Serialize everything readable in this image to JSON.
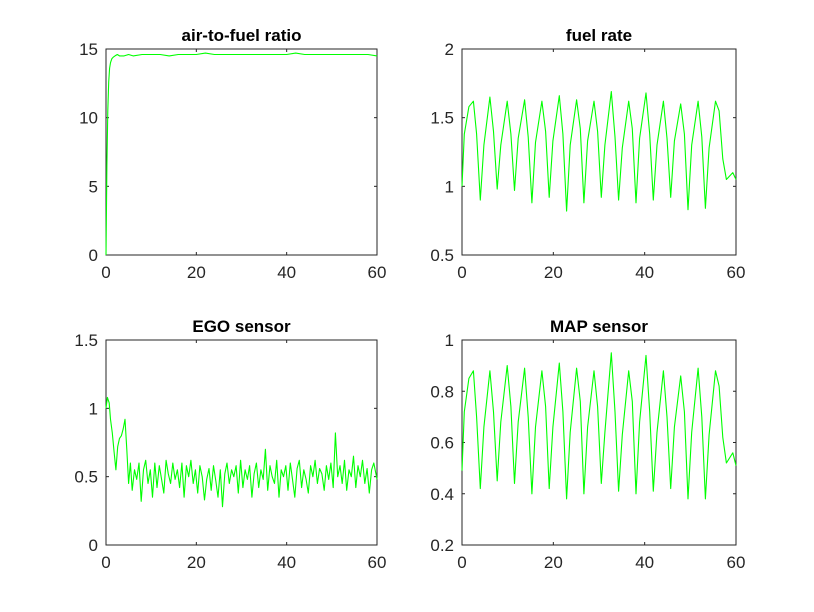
{
  "colors": {
    "line": "#00ff00",
    "axes": "#262626",
    "background": "#ffffff"
  },
  "chart_data": [
    {
      "type": "line",
      "title": "air-to-fuel ratio",
      "xlim": [
        0,
        60
      ],
      "ylim": [
        0,
        15
      ],
      "xticks": [
        "0",
        "20",
        "40",
        "60"
      ],
      "yticks": [
        "0",
        "5",
        "10",
        "15"
      ],
      "series": [
        {
          "x": [
            0,
            0.2,
            0.4,
            0.6,
            0.8,
            1.0,
            1.3,
            1.6,
            2.0,
            2.5,
            3,
            4,
            5,
            6,
            8,
            10,
            12,
            14,
            16,
            18,
            20,
            22,
            24,
            26,
            28,
            30,
            32,
            34,
            36,
            38,
            40,
            42,
            44,
            46,
            48,
            50,
            52,
            54,
            56,
            58,
            60
          ],
          "y": [
            0,
            6.5,
            10.5,
            12.6,
            13.6,
            14.0,
            14.3,
            14.4,
            14.5,
            14.6,
            14.5,
            14.5,
            14.6,
            14.5,
            14.6,
            14.6,
            14.6,
            14.5,
            14.6,
            14.6,
            14.6,
            14.7,
            14.6,
            14.6,
            14.6,
            14.6,
            14.6,
            14.6,
            14.6,
            14.6,
            14.6,
            14.7,
            14.6,
            14.6,
            14.6,
            14.6,
            14.6,
            14.6,
            14.6,
            14.6,
            14.5
          ]
        }
      ]
    },
    {
      "type": "line",
      "title": "fuel rate",
      "xlim": [
        0,
        60
      ],
      "ylim": [
        0.5,
        2
      ],
      "xticks": [
        "0",
        "20",
        "40",
        "60"
      ],
      "yticks": [
        "0.5",
        "1",
        "1.5",
        "2"
      ],
      "series": [
        {
          "x": [
            0,
            0.5,
            1.5,
            2.5,
            3.2,
            4.0,
            4.8,
            6.1,
            6.9,
            7.7,
            8.5,
            9.9,
            10.7,
            11.5,
            12.3,
            13.7,
            14.5,
            15.3,
            16.1,
            17.5,
            18.3,
            19.1,
            19.9,
            21.3,
            22.1,
            22.9,
            23.7,
            25.1,
            25.9,
            26.7,
            27.5,
            28.9,
            29.7,
            30.5,
            31.3,
            32.7,
            33.5,
            34.3,
            35.1,
            36.5,
            37.3,
            38.1,
            38.9,
            40.3,
            41.1,
            41.9,
            42.7,
            44.1,
            44.9,
            45.7,
            46.5,
            47.9,
            48.7,
            49.5,
            50.3,
            51.7,
            52.5,
            53.3,
            54.1,
            55.5,
            56.3,
            57.1,
            57.9,
            59.3,
            60
          ],
          "y": [
            1.0,
            1.38,
            1.58,
            1.62,
            1.38,
            0.9,
            1.3,
            1.65,
            1.4,
            0.98,
            1.3,
            1.62,
            1.38,
            0.97,
            1.35,
            1.63,
            1.36,
            0.88,
            1.32,
            1.62,
            1.4,
            0.92,
            1.33,
            1.66,
            1.38,
            0.82,
            1.3,
            1.63,
            1.42,
            0.88,
            1.33,
            1.62,
            1.4,
            0.92,
            1.3,
            1.69,
            1.36,
            0.9,
            1.28,
            1.62,
            1.42,
            0.88,
            1.35,
            1.68,
            1.38,
            0.9,
            1.3,
            1.62,
            1.35,
            0.92,
            1.33,
            1.6,
            1.38,
            0.83,
            1.3,
            1.62,
            1.36,
            0.84,
            1.28,
            1.62,
            1.55,
            1.2,
            1.05,
            1.1,
            1.05
          ]
        }
      ]
    },
    {
      "type": "line",
      "title": "EGO sensor",
      "xlim": [
        0,
        60
      ],
      "ylim": [
        0,
        1.5
      ],
      "xticks": [
        "0",
        "20",
        "40",
        "60"
      ],
      "yticks": [
        "0",
        "0.5",
        "1",
        "1.5"
      ],
      "series": [
        {
          "x": [
            0,
            0.3,
            0.7,
            1.0,
            1.4,
            1.8,
            2.2,
            2.6,
            3.0,
            3.4,
            3.8,
            4.2,
            4.6,
            5.0,
            5.4,
            5.8,
            6.3,
            6.8,
            7.3,
            7.8,
            8.3,
            8.8,
            9.3,
            9.8,
            10.3,
            10.8,
            11.3,
            11.8,
            12.3,
            12.8,
            13.3,
            13.8,
            14.3,
            14.8,
            15.3,
            15.8,
            16.3,
            16.8,
            17.3,
            17.8,
            18.3,
            18.8,
            19.3,
            19.8,
            20.3,
            20.8,
            21.3,
            21.8,
            22.3,
            22.8,
            23.3,
            23.8,
            24.3,
            24.8,
            25.3,
            25.8,
            26.3,
            26.8,
            27.3,
            27.8,
            28.3,
            28.8,
            29.3,
            29.8,
            30.3,
            30.8,
            31.3,
            31.8,
            32.3,
            32.8,
            33.3,
            33.8,
            34.3,
            34.8,
            35.3,
            35.8,
            36.3,
            36.8,
            37.3,
            37.8,
            38.3,
            38.8,
            39.3,
            39.8,
            40.3,
            40.8,
            41.3,
            41.8,
            42.3,
            42.8,
            43.3,
            43.8,
            44.3,
            44.8,
            45.3,
            45.8,
            46.3,
            46.8,
            47.3,
            47.8,
            48.3,
            48.8,
            49.3,
            49.8,
            50.3,
            50.8,
            51.3,
            51.8,
            52.3,
            52.8,
            53.3,
            53.8,
            54.3,
            54.8,
            55.3,
            55.8,
            56.3,
            56.8,
            57.3,
            57.8,
            58.3,
            58.8,
            59.3,
            60
          ],
          "y": [
            1.0,
            1.08,
            1.04,
            0.92,
            0.82,
            0.68,
            0.55,
            0.72,
            0.78,
            0.8,
            0.85,
            0.92,
            0.7,
            0.45,
            0.6,
            0.4,
            0.55,
            0.48,
            0.6,
            0.32,
            0.55,
            0.62,
            0.45,
            0.55,
            0.35,
            0.6,
            0.42,
            0.58,
            0.48,
            0.38,
            0.62,
            0.52,
            0.45,
            0.6,
            0.48,
            0.55,
            0.42,
            0.6,
            0.35,
            0.58,
            0.5,
            0.62,
            0.45,
            0.55,
            0.38,
            0.58,
            0.5,
            0.33,
            0.48,
            0.56,
            0.4,
            0.58,
            0.47,
            0.35,
            0.55,
            0.28,
            0.52,
            0.6,
            0.45,
            0.55,
            0.5,
            0.58,
            0.38,
            0.62,
            0.42,
            0.55,
            0.48,
            0.58,
            0.35,
            0.52,
            0.6,
            0.42,
            0.55,
            0.48,
            0.7,
            0.4,
            0.58,
            0.5,
            0.45,
            0.62,
            0.35,
            0.55,
            0.5,
            0.58,
            0.4,
            0.6,
            0.48,
            0.35,
            0.56,
            0.62,
            0.42,
            0.55,
            0.48,
            0.38,
            0.58,
            0.5,
            0.62,
            0.45,
            0.56,
            0.52,
            0.4,
            0.58,
            0.48,
            0.6,
            0.42,
            0.82,
            0.5,
            0.58,
            0.45,
            0.62,
            0.4,
            0.55,
            0.5,
            0.65,
            0.42,
            0.58,
            0.5,
            0.62,
            0.45,
            0.56,
            0.38,
            0.55,
            0.6,
            0.48
          ]
        }
      ]
    },
    {
      "type": "line",
      "title": "MAP sensor",
      "xlim": [
        0,
        60
      ],
      "ylim": [
        0.2,
        1
      ],
      "xticks": [
        "0",
        "20",
        "40",
        "60"
      ],
      "yticks": [
        "0.2",
        "0.4",
        "0.6",
        "0.8",
        "1"
      ],
      "series": [
        {
          "x": [
            0,
            0.5,
            1.5,
            2.5,
            3.2,
            4.0,
            4.8,
            6.1,
            6.9,
            7.7,
            8.5,
            9.9,
            10.7,
            11.5,
            12.3,
            13.7,
            14.5,
            15.3,
            16.1,
            17.5,
            18.3,
            19.1,
            19.9,
            21.3,
            22.1,
            22.9,
            23.7,
            25.1,
            25.9,
            26.7,
            27.5,
            28.9,
            29.7,
            30.5,
            31.3,
            32.7,
            33.5,
            34.3,
            35.1,
            36.5,
            37.3,
            38.1,
            38.9,
            40.3,
            41.1,
            41.9,
            42.7,
            44.1,
            44.9,
            45.7,
            46.5,
            47.9,
            48.7,
            49.5,
            50.3,
            51.7,
            52.5,
            53.3,
            54.1,
            55.5,
            56.3,
            57.1,
            57.9,
            59.3,
            60
          ],
          "y": [
            0.49,
            0.72,
            0.85,
            0.88,
            0.7,
            0.42,
            0.66,
            0.88,
            0.72,
            0.45,
            0.68,
            0.9,
            0.74,
            0.44,
            0.68,
            0.89,
            0.7,
            0.4,
            0.66,
            0.88,
            0.74,
            0.42,
            0.66,
            0.91,
            0.72,
            0.38,
            0.64,
            0.89,
            0.76,
            0.4,
            0.66,
            0.88,
            0.74,
            0.44,
            0.64,
            0.95,
            0.72,
            0.41,
            0.63,
            0.88,
            0.76,
            0.4,
            0.68,
            0.94,
            0.72,
            0.41,
            0.64,
            0.88,
            0.7,
            0.42,
            0.66,
            0.86,
            0.72,
            0.38,
            0.64,
            0.89,
            0.7,
            0.38,
            0.63,
            0.88,
            0.82,
            0.62,
            0.52,
            0.56,
            0.51
          ]
        }
      ]
    }
  ]
}
